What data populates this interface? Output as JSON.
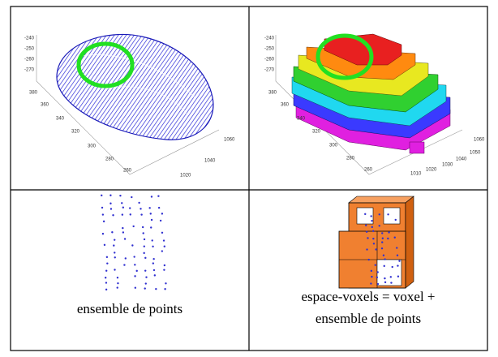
{
  "figure": {
    "cells": [
      {
        "z_ticks": [
          "-240",
          "-250",
          "-260",
          "-270"
        ],
        "y_ticks": [
          "380",
          "360",
          "340",
          "320",
          "300",
          "280",
          "260"
        ],
        "x_ticks": [
          "1020",
          "1040",
          "1060"
        ]
      },
      {
        "z_ticks": [
          "-240",
          "-250",
          "-260",
          "-270"
        ],
        "y_ticks": [
          "380",
          "360",
          "340",
          "320",
          "300",
          "280",
          "260"
        ],
        "x_ticks": [
          "1010",
          "1020",
          "1030",
          "1040",
          "1050",
          "1060"
        ]
      },
      {
        "caption": [
          "ensemble de points"
        ]
      },
      {
        "caption": [
          "espace-voxels = voxel +",
          "ensemble de points"
        ]
      }
    ]
  }
}
